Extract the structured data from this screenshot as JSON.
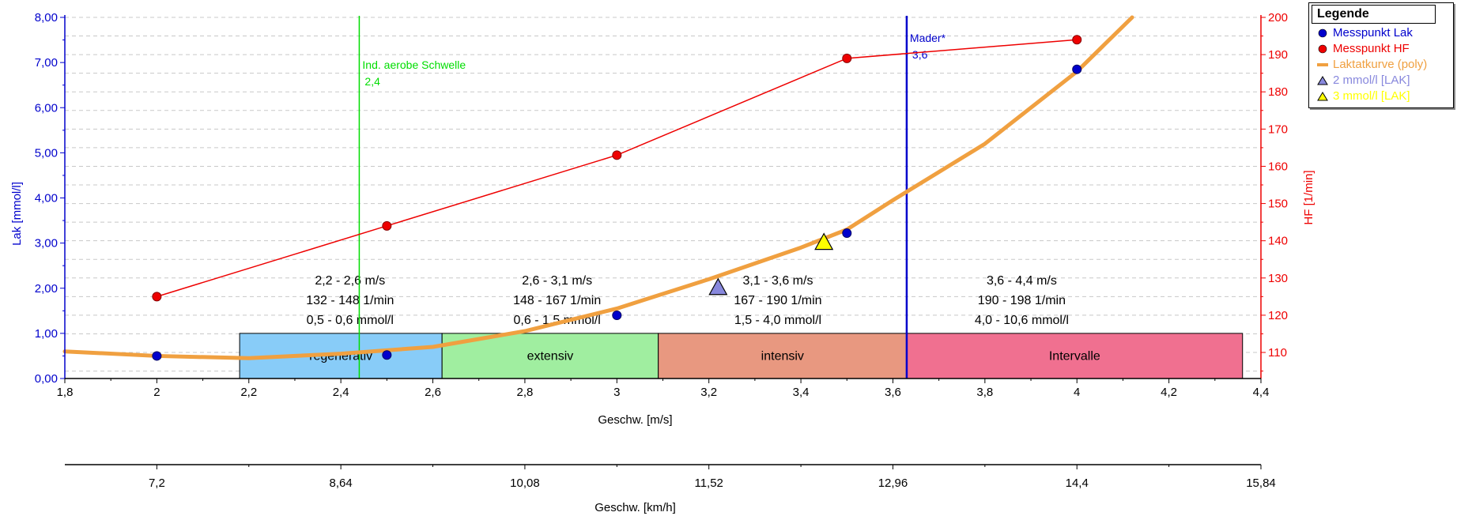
{
  "chart_data": {
    "type": "line",
    "xlabel": "Geschw. [m/s]",
    "x2label": "Geschw. [km/h]",
    "ylabel_left": "Lak [mmol/l]",
    "ylabel_right": "HF [1/min]",
    "xlim": [
      1.8,
      4.4
    ],
    "ylim_left": [
      0,
      8
    ],
    "ylim_right": [
      103,
      200
    ],
    "x_ticks": [
      "1,8",
      "2",
      "2,2",
      "2,4",
      "2,6",
      "2,8",
      "3",
      "3,2",
      "3,4",
      "3,6",
      "3,8",
      "4",
      "4,2",
      "4,4"
    ],
    "x_tick_values": [
      1.8,
      2.0,
      2.2,
      2.4,
      2.6,
      2.8,
      3.0,
      3.2,
      3.4,
      3.6,
      3.8,
      4.0,
      4.2,
      4.4
    ],
    "x2_ticks": [
      "7,2",
      "8,64",
      "10,08",
      "11,52",
      "12,96",
      "14,4",
      "15,84"
    ],
    "x2_tick_values_kmh": [
      7.2,
      8.64,
      10.08,
      11.52,
      12.96,
      14.4,
      15.84
    ],
    "y_left_ticks": [
      "0,00",
      "1,00",
      "2,00",
      "3,00",
      "4,00",
      "5,00",
      "6,00",
      "7,00",
      "8,00"
    ],
    "y_left_tick_values": [
      0,
      1,
      2,
      3,
      4,
      5,
      6,
      7,
      8
    ],
    "y_right_ticks": [
      "110",
      "120",
      "130",
      "140",
      "150",
      "160",
      "170",
      "180",
      "190",
      "200"
    ],
    "y_right_tick_values": [
      110,
      120,
      130,
      140,
      150,
      160,
      170,
      180,
      190,
      200
    ],
    "grid": true,
    "legend_position": "top-right",
    "series": [
      {
        "name": "Messpunkt Lak",
        "axis": "left",
        "color": "#0000cc",
        "marker": "circle",
        "x": [
          2.0,
          2.5,
          3.0,
          3.5,
          4.0
        ],
        "y": [
          0.5,
          0.52,
          1.4,
          3.22,
          6.85
        ]
      },
      {
        "name": "Messpunkt HF",
        "axis": "right",
        "color": "#ee0000",
        "marker": "circle",
        "x": [
          2.0,
          2.5,
          3.0,
          3.5,
          4.0
        ],
        "y": [
          125,
          144,
          163,
          189,
          194
        ]
      },
      {
        "name": "Laktatkurve (poly)",
        "axis": "left",
        "color": "#f0a040",
        "x": [
          1.8,
          2.0,
          2.2,
          2.4,
          2.6,
          2.8,
          3.0,
          3.2,
          3.4,
          3.5,
          3.6,
          3.8,
          4.0,
          4.12
        ],
        "y": [
          0.6,
          0.5,
          0.45,
          0.55,
          0.7,
          1.05,
          1.55,
          2.2,
          2.9,
          3.3,
          3.95,
          5.2,
          6.8,
          8.0
        ]
      },
      {
        "name": "2 mmol/l [LAK]",
        "axis": "left",
        "color": "#8888dd",
        "marker": "triangle",
        "x": [
          3.22
        ],
        "y": [
          2.0
        ]
      },
      {
        "name": "3 mmol/l [LAK]",
        "axis": "left",
        "color": "#ffff00",
        "marker": "triangle",
        "x": [
          3.45
        ],
        "y": [
          3.0
        ]
      }
    ],
    "vlines": [
      {
        "x": 2.44,
        "color": "#00dd00",
        "label": "Ind. aerobe Schwelle",
        "value": "2,4"
      },
      {
        "x": 3.63,
        "color": "#0000cc",
        "label": "Mader*",
        "value": "3,6"
      }
    ],
    "zones": [
      {
        "label": "regenerativ",
        "x0": 2.18,
        "x1": 2.62,
        "color": "#88ccf8"
      },
      {
        "label": "extensiv",
        "x0": 2.62,
        "x1": 3.09,
        "color": "#a0eea0"
      },
      {
        "label": "intensiv",
        "x0": 3.09,
        "x1": 3.63,
        "color": "#e89880"
      },
      {
        "label": "Intervalle",
        "x0": 3.63,
        "x1": 4.36,
        "color": "#f07090"
      }
    ],
    "zone_info": [
      {
        "x": 2.42,
        "lines": [
          "2,2 - 2,6 m/s",
          "132 - 148 1/min",
          "0,5 - 0,6 mmol/l"
        ]
      },
      {
        "x": 2.87,
        "lines": [
          "2,6 - 3,1 m/s",
          "148 - 167 1/min",
          "0,6 - 1,5 mmol/l"
        ]
      },
      {
        "x": 3.35,
        "lines": [
          "3,1 - 3,6 m/s",
          "167 - 190 1/min",
          "1,5 - 4,0 mmol/l"
        ]
      },
      {
        "x": 3.88,
        "lines": [
          "3,6 - 4,4 m/s",
          "190 - 198 1/min",
          "4,0 - 10,6 mmol/l"
        ]
      }
    ]
  },
  "legend": {
    "title": "Legende",
    "items": [
      {
        "label": "Messpunkt Lak",
        "color": "#0000cc",
        "symbol": "circle"
      },
      {
        "label": "Messpunkt HF",
        "color": "#ee0000",
        "symbol": "circle"
      },
      {
        "label": "Laktatkurve (poly)",
        "color": "#f0a040",
        "symbol": "line"
      },
      {
        "label": "2 mmol/l [LAK]",
        "color": "#8888dd",
        "symbol": "triangle"
      },
      {
        "label": "3 mmol/l [LAK]",
        "color": "#ffff00",
        "symbol": "triangle"
      }
    ]
  }
}
